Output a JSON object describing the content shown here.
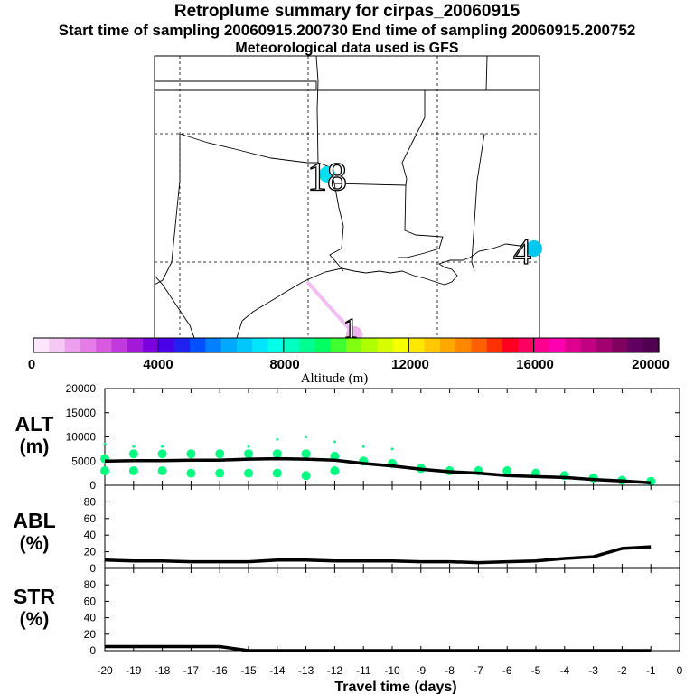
{
  "titles": {
    "line1": "Retroplume summary for cirpas_20060915",
    "line2": "Start time of sampling 20060915.200730     End time of sampling 20060915.200752",
    "line3": "Meteorological data used is GFS"
  },
  "map": {
    "labels": [
      {
        "id": "18",
        "text": "18"
      },
      {
        "id": "4",
        "text": "4"
      },
      {
        "id": "1",
        "text": "1"
      }
    ]
  },
  "colorbar": {
    "title": "Altitude (m)",
    "tick_labels": [
      "0",
      "4000",
      "8000",
      "12000",
      "16000",
      "20000"
    ],
    "colors": [
      "#fbe6fb",
      "#f5c8f5",
      "#ee9eee",
      "#e57ce8",
      "#d85ae0",
      "#c23ade",
      "#a01ad8",
      "#7a00e0",
      "#4a00e8",
      "#2020f0",
      "#0050ff",
      "#0080ff",
      "#00a8ff",
      "#00c8ff",
      "#00e6ff",
      "#00ffe6",
      "#00ffc0",
      "#00ff90",
      "#00ff60",
      "#40ff30",
      "#80ff10",
      "#b0ff00",
      "#d8ff00",
      "#f8ff00",
      "#ffe800",
      "#ffc800",
      "#ffa800",
      "#ff8800",
      "#ff6000",
      "#ff3000",
      "#ff0020",
      "#ff0060",
      "#ff0090",
      "#ff00b0",
      "#e00090",
      "#c00080",
      "#a00070",
      "#800060",
      "#600060",
      "#500050"
    ]
  },
  "panels": {
    "alt": {
      "label_line1": "ALT",
      "label_line2": "(m)"
    },
    "abl": {
      "label_line1": "ABL",
      "label_line2": "(%)"
    },
    "str": {
      "label_line1": "STR",
      "label_line2": "(%)"
    }
  },
  "chart_data": [
    {
      "type": "line",
      "title": "ALT",
      "ylabel": "ALT (m)",
      "xlabel": "Travel time (days)",
      "ylim": [
        0,
        20000
      ],
      "yticks": [
        0,
        5000,
        10000,
        15000,
        20000
      ],
      "x": [
        -20,
        -19,
        -18,
        -17,
        -16,
        -15,
        -14,
        -13,
        -12,
        -11,
        -10,
        -9,
        -8,
        -7,
        -6,
        -5,
        -4,
        -3,
        -2,
        -1
      ],
      "series": [
        {
          "name": "mean altitude",
          "values": [
            5000,
            5100,
            5100,
            5200,
            5200,
            5400,
            5500,
            5400,
            5200,
            4500,
            4000,
            3300,
            2800,
            2500,
            2000,
            1800,
            1600,
            1200,
            900,
            500
          ]
        }
      ],
      "scatter": [
        {
          "x": -20,
          "y": 5500
        },
        {
          "x": -20,
          "y": 3000
        },
        {
          "x": -20,
          "y": 8500
        },
        {
          "x": -19,
          "y": 6500
        },
        {
          "x": -19,
          "y": 3000
        },
        {
          "x": -19,
          "y": 8000
        },
        {
          "x": -18,
          "y": 6500
        },
        {
          "x": -18,
          "y": 3000
        },
        {
          "x": -18,
          "y": 8000
        },
        {
          "x": -17,
          "y": 6500
        },
        {
          "x": -17,
          "y": 2500
        },
        {
          "x": -16,
          "y": 6500
        },
        {
          "x": -16,
          "y": 2500
        },
        {
          "x": -15,
          "y": 6500
        },
        {
          "x": -15,
          "y": 2500
        },
        {
          "x": -15,
          "y": 8000
        },
        {
          "x": -14,
          "y": 6500
        },
        {
          "x": -14,
          "y": 2500
        },
        {
          "x": -14,
          "y": 9500
        },
        {
          "x": -13,
          "y": 6500
        },
        {
          "x": -13,
          "y": 2000
        },
        {
          "x": -13,
          "y": 10000
        },
        {
          "x": -12,
          "y": 6000
        },
        {
          "x": -12,
          "y": 3000
        },
        {
          "x": -12,
          "y": 9000
        },
        {
          "x": -11,
          "y": 5000
        },
        {
          "x": -11,
          "y": 8000
        },
        {
          "x": -10,
          "y": 4500
        },
        {
          "x": -10,
          "y": 7500
        },
        {
          "x": -9,
          "y": 3500
        },
        {
          "x": -8,
          "y": 3000
        },
        {
          "x": -7,
          "y": 3000
        },
        {
          "x": -6,
          "y": 3000
        },
        {
          "x": -5,
          "y": 2500
        },
        {
          "x": -4,
          "y": 2000
        },
        {
          "x": -3,
          "y": 1500
        },
        {
          "x": -2,
          "y": 1000
        },
        {
          "x": -1,
          "y": 800
        }
      ]
    },
    {
      "type": "line",
      "title": "ABL",
      "ylabel": "ABL (%)",
      "ylim": [
        0,
        100
      ],
      "yticks": [
        0,
        20,
        40,
        60,
        80
      ],
      "x": [
        -20,
        -19,
        -18,
        -17,
        -16,
        -15,
        -14,
        -13,
        -12,
        -11,
        -10,
        -9,
        -8,
        -7,
        -6,
        -5,
        -4,
        -3,
        -2,
        -1
      ],
      "series": [
        {
          "name": "ABL",
          "values": [
            10,
            9,
            9,
            8,
            8,
            8,
            10,
            10,
            9,
            9,
            9,
            8,
            8,
            7,
            8,
            9,
            12,
            14,
            24,
            26
          ]
        }
      ]
    },
    {
      "type": "line",
      "title": "STR",
      "ylabel": "STR (%)",
      "xlabel": "Travel time (days)",
      "ylim": [
        0,
        100
      ],
      "yticks": [
        0,
        20,
        40,
        60,
        80
      ],
      "x": [
        -20,
        -19,
        -18,
        -17,
        -16,
        -15,
        -14,
        -13,
        -12,
        -11,
        -10,
        -9,
        -8,
        -7,
        -6,
        -5,
        -4,
        -3,
        -2,
        -1
      ],
      "xtick_labels": [
        "-20",
        "-19",
        "-18",
        "-17",
        "-16",
        "-15",
        "-14",
        "-13",
        "-12",
        "-11",
        "-10",
        "-9",
        "-8",
        "-7",
        "-6",
        "-5",
        "-4",
        "-3",
        "-2",
        "-1",
        "0"
      ],
      "series": [
        {
          "name": "STR",
          "values": [
            5,
            5,
            5,
            5,
            5,
            0,
            0,
            0,
            0,
            0,
            0,
            0,
            0,
            0,
            0,
            0,
            0,
            0,
            0,
            0
          ]
        }
      ]
    }
  ]
}
